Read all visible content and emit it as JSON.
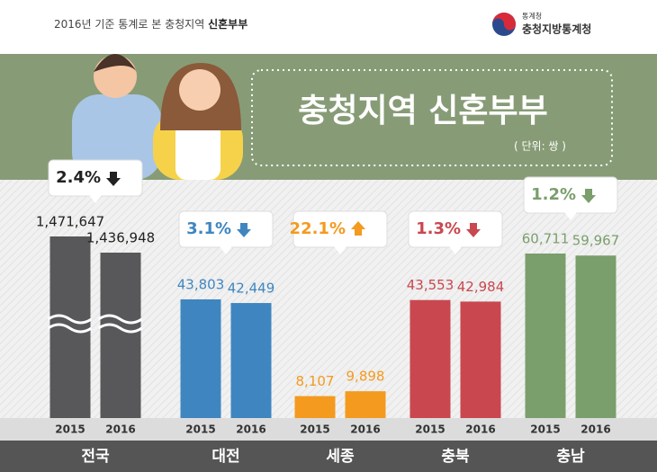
{
  "header": {
    "prefix": "2016년 기준 통계로 본 충청지역",
    "emphasis": "신혼부부"
  },
  "logo": {
    "small": "통계청",
    "name": "충청지방통계청"
  },
  "chart_data": {
    "type": "bar",
    "title": "충청지역 신혼부부",
    "unit": "( 단위: 쌍 )",
    "categories": [
      "2015",
      "2016"
    ],
    "groups": [
      {
        "name": "전국",
        "color": "#58585a",
        "broken": true,
        "change": 2.4,
        "change_label": "2.4%",
        "direction": "down",
        "values": [
          1471647,
          1436948
        ],
        "value_labels": [
          "1,471,647",
          "1,436,948"
        ]
      },
      {
        "name": "대전",
        "color": "#3f86c0",
        "change": 3.1,
        "change_label": "3.1%",
        "direction": "down",
        "values": [
          43803,
          42449
        ],
        "value_labels": [
          "43,803",
          "42,449"
        ]
      },
      {
        "name": "세종",
        "color": "#f39a1f",
        "change": 22.1,
        "change_label": "22.1%",
        "direction": "up",
        "values": [
          8107,
          9898
        ],
        "value_labels": [
          "8,107",
          "9,898"
        ]
      },
      {
        "name": "충북",
        "color": "#c9474f",
        "change": 1.3,
        "change_label": "1.3%",
        "direction": "down",
        "values": [
          43553,
          42984
        ],
        "value_labels": [
          "43,553",
          "42,984"
        ]
      },
      {
        "name": "충남",
        "color": "#7a9e6c",
        "change": 1.2,
        "change_label": "1.2%",
        "direction": "down",
        "values": [
          60711,
          59967
        ],
        "value_labels": [
          "60,711",
          "59,967"
        ]
      }
    ]
  }
}
